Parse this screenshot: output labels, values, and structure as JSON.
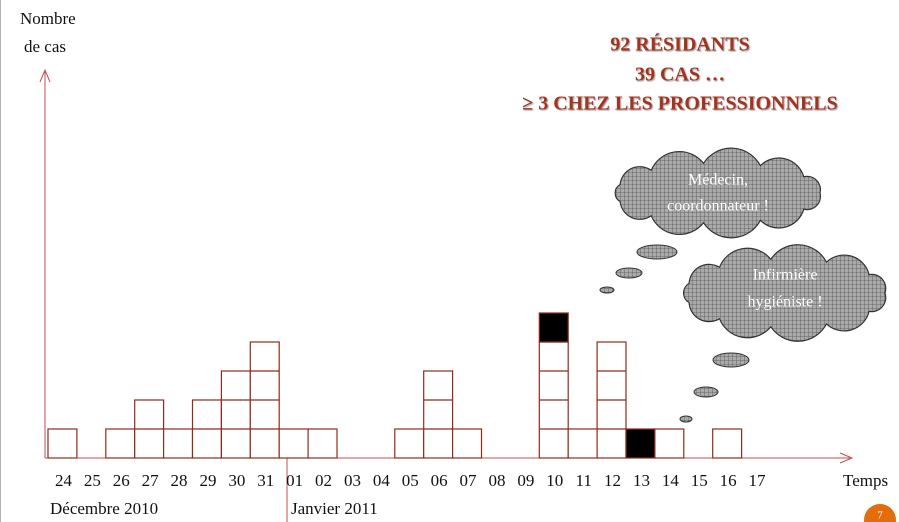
{
  "chart_data": {
    "type": "bar",
    "stacked": true,
    "title_lines": [
      "92 RÉSIDANTS",
      "39 CAS …",
      "≥ 3 CHEZ LES PROFESSIONNELS"
    ],
    "y_label_lines": [
      "Nombre",
      "de cas"
    ],
    "x_label": "Temps",
    "month_labels": [
      "Décembre 2010",
      "Janvier 2011"
    ],
    "categories": [
      "24",
      "25",
      "26",
      "27",
      "28",
      "29",
      "30",
      "31",
      "01",
      "02",
      "03",
      "04",
      "05",
      "06",
      "07",
      "08",
      "09",
      "10",
      "11",
      "12",
      "13",
      "14",
      "15",
      "16",
      "17"
    ],
    "series": [
      {
        "color": "#ffffff",
        "values": [
          1,
          0,
          1,
          2,
          1,
          2,
          3,
          4,
          1,
          1,
          0,
          0,
          1,
          3,
          1,
          0,
          0,
          4,
          1,
          4,
          0,
          1,
          0,
          1,
          0
        ]
      },
      {
        "color": "#000000",
        "values": [
          0,
          0,
          0,
          0,
          0,
          0,
          0,
          0,
          0,
          0,
          0,
          0,
          0,
          0,
          0,
          0,
          0,
          1,
          0,
          0,
          1,
          0,
          0,
          0,
          0
        ]
      }
    ],
    "ylim": [
      0,
      13
    ],
    "annotations": [
      [
        "Médecin,",
        "coordonnateur !"
      ],
      [
        "Infirmière",
        "hygiéniste !"
      ]
    ],
    "page_number": "7"
  }
}
